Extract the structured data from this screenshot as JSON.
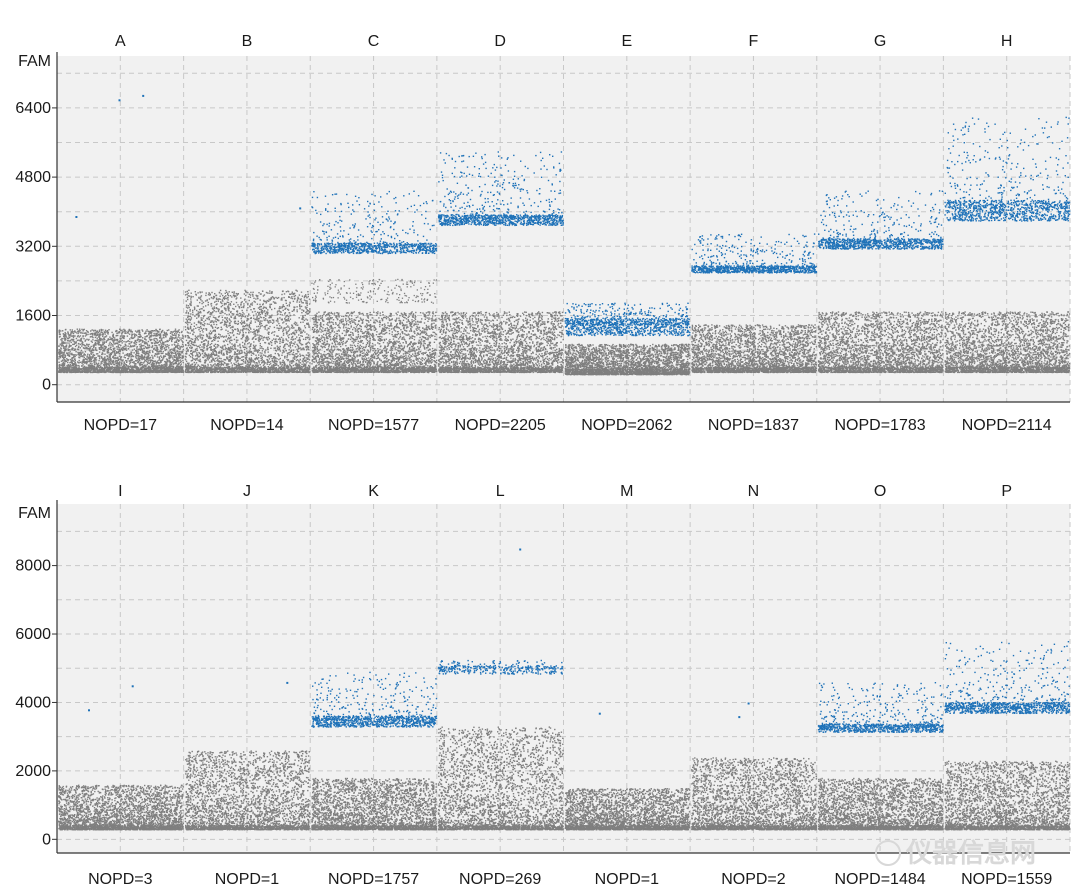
{
  "chart_data": [
    {
      "type": "scatter",
      "title": "",
      "ylabel": "FAM",
      "xlabel": "",
      "ylim": [
        -400,
        7600
      ],
      "yticks": [
        0,
        1600,
        3200,
        4800,
        6400
      ],
      "grid": true,
      "colors": {
        "negative": "#7f7f7f",
        "positive": "#1f72b8"
      },
      "wells": [
        {
          "name": "A",
          "count_label": "NOPD=17",
          "neg_min": 300,
          "neg_max": 1300,
          "pos_min": null,
          "pos_max": null,
          "pos_core": null,
          "pos_count": 3,
          "pos_outliers": [
            3900,
            6700,
            6600
          ]
        },
        {
          "name": "B",
          "count_label": "NOPD=14",
          "neg_min": 300,
          "neg_max": 2200,
          "pos_min": null,
          "pos_max": null,
          "pos_core": null,
          "pos_count": 1,
          "pos_outliers": [
            4100
          ]
        },
        {
          "name": "C",
          "count_label": "NOPD=1577",
          "neg_min": 300,
          "neg_max": 1700,
          "pos_min": 3050,
          "pos_max": 4500,
          "pos_core": 3200,
          "pos_count": 900,
          "pos_outliers": [],
          "rain_min": 1900,
          "rain_max": 2450
        },
        {
          "name": "D",
          "count_label": "NOPD=2205",
          "neg_min": 300,
          "neg_max": 1700,
          "pos_min": 3700,
          "pos_max": 5400,
          "pos_core": 3850,
          "pos_count": 1100,
          "pos_outliers": []
        },
        {
          "name": "E",
          "count_label": "NOPD=2062",
          "neg_min": 250,
          "neg_max": 950,
          "pos_min": 1150,
          "pos_max": 1900,
          "pos_core": 1400,
          "pos_count": 1100,
          "pos_outliers": []
        },
        {
          "name": "F",
          "count_label": "NOPD=1837",
          "neg_min": 300,
          "neg_max": 1400,
          "pos_min": 2600,
          "pos_max": 3500,
          "pos_core": 2700,
          "pos_count": 1000,
          "pos_outliers": []
        },
        {
          "name": "G",
          "count_label": "NOPD=1783",
          "neg_min": 300,
          "neg_max": 1700,
          "pos_min": 3150,
          "pos_max": 4500,
          "pos_core": 3300,
          "pos_count": 1000,
          "pos_outliers": []
        },
        {
          "name": "H",
          "count_label": "NOPD=2114",
          "neg_min": 300,
          "neg_max": 1700,
          "pos_min": 3800,
          "pos_max": 6200,
          "pos_core": 4100,
          "pos_count": 1100,
          "pos_outliers": []
        }
      ]
    },
    {
      "type": "scatter",
      "title": "",
      "ylabel": "FAM",
      "xlabel": "",
      "ylim": [
        -400,
        9800
      ],
      "yticks": [
        0,
        2000,
        4000,
        6000,
        8000
      ],
      "grid": true,
      "colors": {
        "negative": "#7f7f7f",
        "positive": "#1f72b8"
      },
      "wells": [
        {
          "name": "I",
          "count_label": "NOPD=3",
          "neg_min": 300,
          "neg_max": 1600,
          "pos_min": null,
          "pos_max": null,
          "pos_core": null,
          "pos_count": 2,
          "pos_outliers": [
            3800,
            4500
          ]
        },
        {
          "name": "J",
          "count_label": "NOPD=1",
          "neg_min": 300,
          "neg_max": 2600,
          "pos_min": null,
          "pos_max": null,
          "pos_core": null,
          "pos_count": 1,
          "pos_outliers": [
            4600
          ]
        },
        {
          "name": "K",
          "count_label": "NOPD=1757",
          "neg_min": 300,
          "neg_max": 1800,
          "pos_min": 3300,
          "pos_max": 4900,
          "pos_core": 3500,
          "pos_count": 1000,
          "pos_outliers": []
        },
        {
          "name": "L",
          "count_label": "NOPD=269",
          "neg_min": 300,
          "neg_max": 3300,
          "pos_min": 4850,
          "pos_max": 5250,
          "pos_core": 5000,
          "pos_count": 350,
          "pos_outliers": [
            8500
          ]
        },
        {
          "name": "M",
          "count_label": "NOPD=1",
          "neg_min": 300,
          "neg_max": 1500,
          "pos_min": null,
          "pos_max": null,
          "pos_core": null,
          "pos_count": 1,
          "pos_outliers": [
            3700
          ]
        },
        {
          "name": "N",
          "count_label": "NOPD=2",
          "neg_min": 300,
          "neg_max": 2400,
          "pos_min": null,
          "pos_max": null,
          "pos_core": null,
          "pos_count": 2,
          "pos_outliers": [
            3600,
            4000
          ]
        },
        {
          "name": "O",
          "count_label": "NOPD=1484",
          "neg_min": 300,
          "neg_max": 1800,
          "pos_min": 3150,
          "pos_max": 4600,
          "pos_core": 3300,
          "pos_count": 900,
          "pos_outliers": []
        },
        {
          "name": "P",
          "count_label": "NOPD=1559",
          "neg_min": 300,
          "neg_max": 2300,
          "pos_min": 3700,
          "pos_max": 5800,
          "pos_core": 3900,
          "pos_count": 1000,
          "pos_outliers": []
        }
      ]
    }
  ],
  "watermark": "仪器信息网"
}
